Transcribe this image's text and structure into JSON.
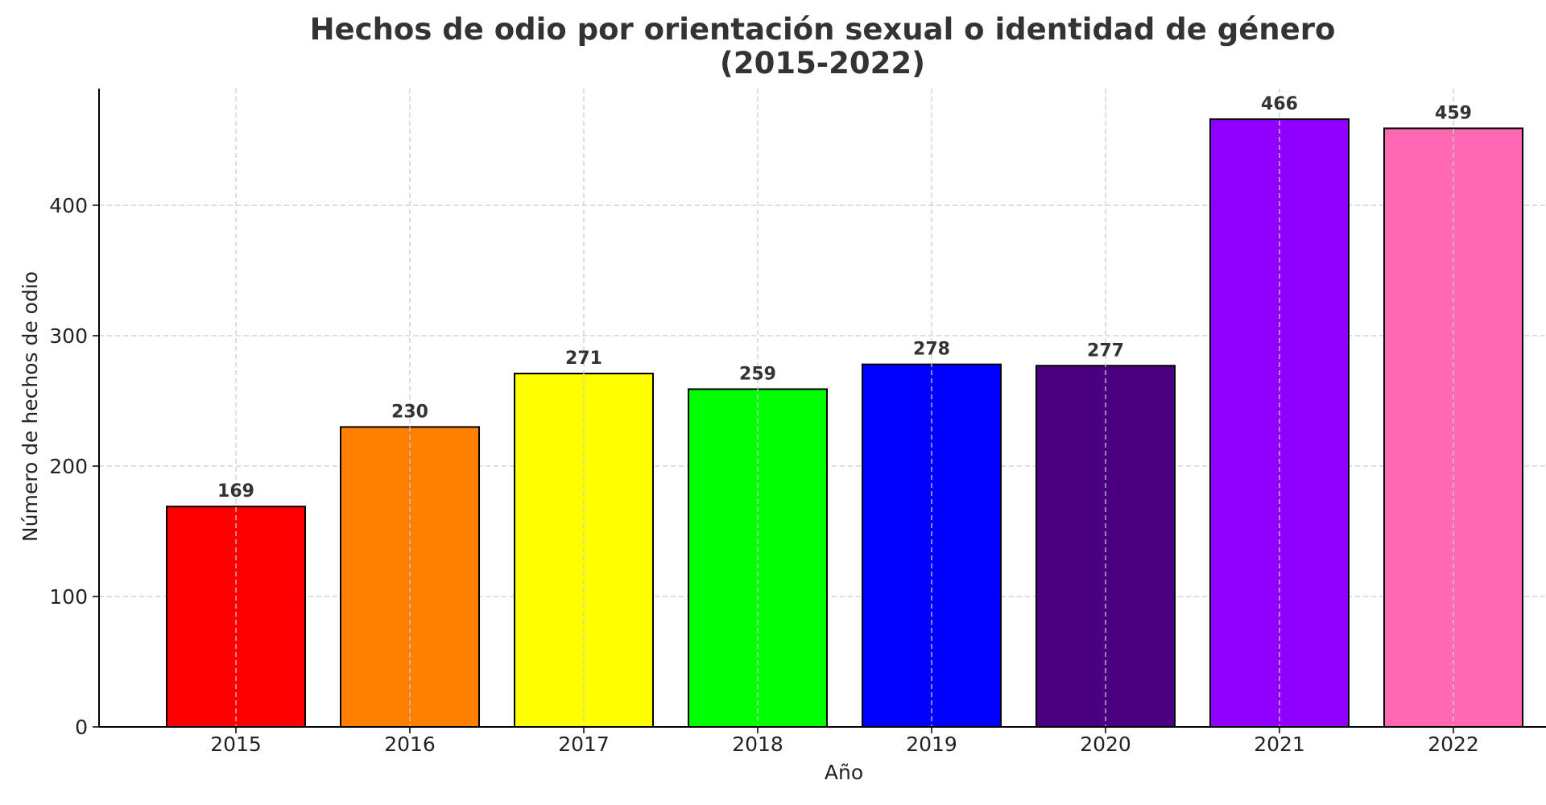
{
  "chart_data": {
    "type": "bar",
    "title": "Hechos de odio por orientación sexual o identidad de género",
    "subtitle": "(2015-2022)",
    "xlabel": "Año",
    "ylabel": "Número de hechos de odio",
    "categories": [
      "2015",
      "2016",
      "2017",
      "2018",
      "2019",
      "2020",
      "2021",
      "2022"
    ],
    "values": [
      169,
      230,
      271,
      259,
      278,
      277,
      466,
      459
    ],
    "colors": [
      "#ff0000",
      "#ff7f00",
      "#ffff00",
      "#00ff00",
      "#0000ff",
      "#4b0082",
      "#8f00ff",
      "#ff69b4"
    ],
    "yticks": [
      0,
      100,
      200,
      300,
      400
    ],
    "ylim": [
      0,
      490
    ],
    "grid": true,
    "bar_edge_color": "#000000"
  }
}
